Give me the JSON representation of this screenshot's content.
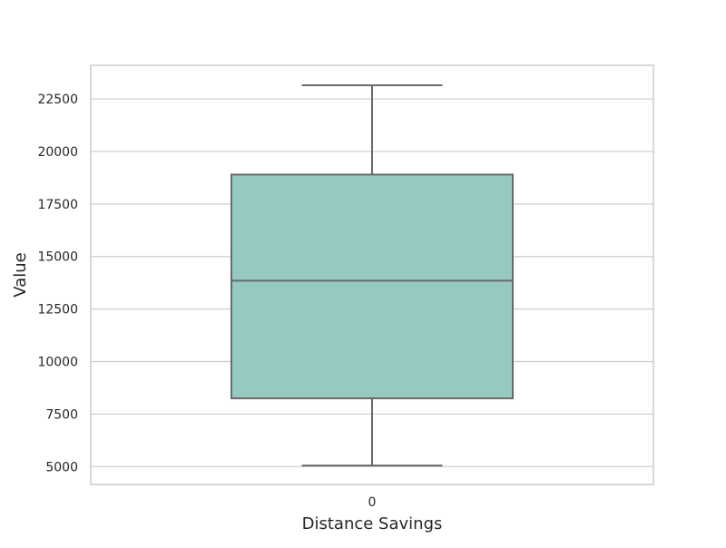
{
  "chart_data": {
    "type": "box",
    "title": "",
    "xlabel": "Distance Savings",
    "ylabel": "Value",
    "categories": [
      "0"
    ],
    "boxes": [
      {
        "category": "0",
        "whisker_low": 5050,
        "q1": 8250,
        "median": 13850,
        "q3": 18900,
        "whisker_high": 23150
      }
    ],
    "ylim": [
      4150,
      24100
    ],
    "yticks": [
      5000,
      7500,
      10000,
      12500,
      15000,
      17500,
      20000,
      22500
    ],
    "grid": true,
    "colors": {
      "box_fill": "#96c9bf",
      "box_line": "#696969",
      "grid": "#cccccc",
      "frame": "#cccccc"
    }
  }
}
